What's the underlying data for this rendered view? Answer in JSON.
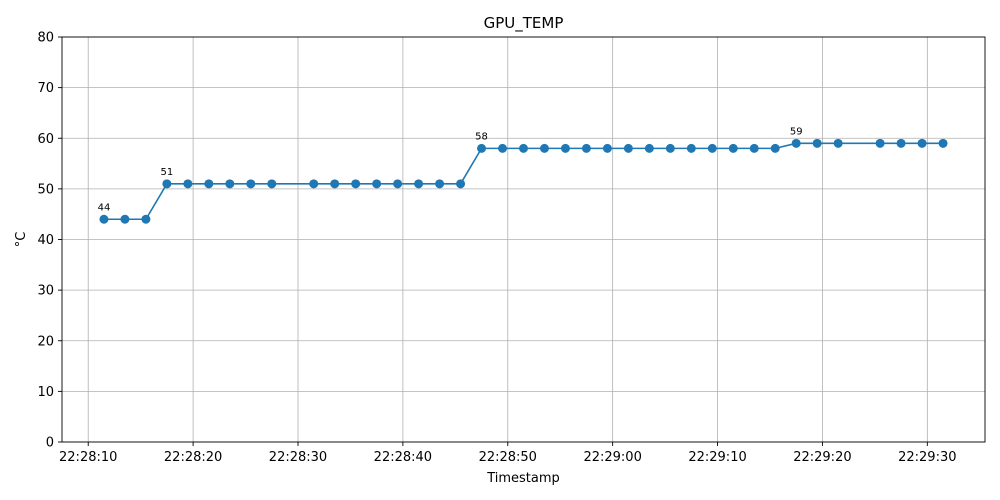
{
  "chart_data": {
    "type": "line",
    "title": "GPU_TEMP",
    "xlabel": "Timestamp",
    "ylabel": "°C",
    "ylim": [
      0,
      80
    ],
    "yticks": [
      0,
      10,
      20,
      30,
      40,
      50,
      60,
      70,
      80
    ],
    "xlim": [
      "22:28:07.5",
      "22:29:35.5"
    ],
    "xticks": [
      "22:28:10",
      "22:28:20",
      "22:28:30",
      "22:28:40",
      "22:28:50",
      "22:29:00",
      "22:29:10",
      "22:29:20",
      "22:29:30"
    ],
    "grid": true,
    "color": "#1f77b4",
    "series": [
      {
        "x": [
          "22:28:11.5",
          "22:28:13.5",
          "22:28:15.5",
          "22:28:17.5",
          "22:28:19.5",
          "22:28:21.5",
          "22:28:23.5",
          "22:28:25.5",
          "22:28:27.5",
          "22:28:31.5",
          "22:28:33.5",
          "22:28:35.5",
          "22:28:37.5",
          "22:28:39.5",
          "22:28:41.5",
          "22:28:43.5",
          "22:28:45.5",
          "22:28:47.5",
          "22:28:49.5",
          "22:28:51.5",
          "22:28:53.5",
          "22:28:55.5",
          "22:28:57.5",
          "22:28:59.5",
          "22:29:01.5",
          "22:29:03.5",
          "22:29:05.5",
          "22:29:07.5",
          "22:29:09.5",
          "22:29:11.5",
          "22:29:13.5",
          "22:29:15.5",
          "22:29:17.5",
          "22:29:19.5",
          "22:29:21.5",
          "22:29:25.5",
          "22:29:27.5",
          "22:29:29.5",
          "22:29:31.5"
        ],
        "y": [
          44,
          44,
          44,
          51,
          51,
          51,
          51,
          51,
          51,
          51,
          51,
          51,
          51,
          51,
          51,
          51,
          51,
          58,
          58,
          58,
          58,
          58,
          58,
          58,
          58,
          58,
          58,
          58,
          58,
          58,
          58,
          58,
          59,
          59,
          59,
          59,
          59,
          59,
          59
        ]
      }
    ],
    "annotations": [
      {
        "x": "22:28:11.5",
        "y": 44,
        "text": "44"
      },
      {
        "x": "22:28:17.5",
        "y": 51,
        "text": "51"
      },
      {
        "x": "22:28:47.5",
        "y": 58,
        "text": "58"
      },
      {
        "x": "22:29:17.5",
        "y": 59,
        "text": "59"
      }
    ]
  }
}
